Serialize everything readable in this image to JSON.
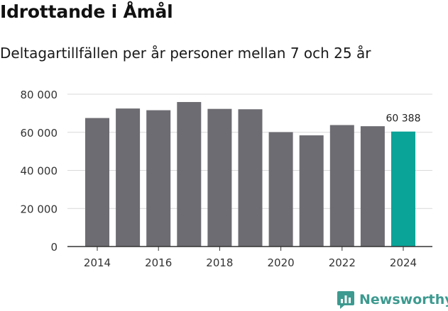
{
  "title": "Idrottande i Åmål",
  "subtitle": "Deltagartillfällen per år personer mellan 7 och 25 år",
  "brand": {
    "name": "Newsworthy",
    "icon": "newsworthy-logo-icon"
  },
  "colors": {
    "bar": "#6d6c72",
    "highlight": "#0aa498",
    "grid": "#d9d9d9",
    "axis": "#333333",
    "text": "#333333",
    "brand": "#3d9a90"
  },
  "chart_data": {
    "type": "bar",
    "title": "Idrottande i Åmål",
    "subtitle": "Deltagartillfällen per år personer mellan 7 och 25 år",
    "xlabel": "",
    "ylabel": "",
    "categories": [
      "2014",
      "2015",
      "2016",
      "2017",
      "2018",
      "2019",
      "2020",
      "2021",
      "2022",
      "2023",
      "2024"
    ],
    "values": [
      67500,
      72500,
      71600,
      75900,
      72300,
      72100,
      60100,
      58400,
      63800,
      63200,
      60388
    ],
    "x_tick_labels": [
      "2014",
      "2016",
      "2018",
      "2020",
      "2022",
      "2024"
    ],
    "y_ticks": [
      0,
      20000,
      40000,
      60000,
      80000
    ],
    "y_tick_labels": [
      "0",
      "20 000",
      "40 000",
      "60 000",
      "80 000"
    ],
    "ylim": [
      0,
      80000
    ],
    "grid": true,
    "highlight_index": 10,
    "annotations": [
      {
        "category": "2024",
        "text": "60 388"
      }
    ]
  }
}
